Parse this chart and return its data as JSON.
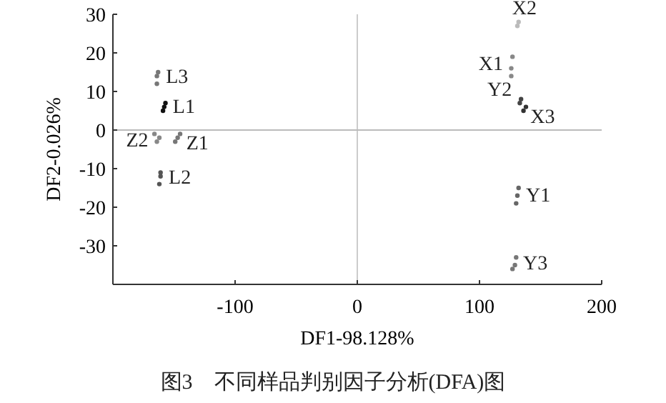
{
  "chart_data": {
    "type": "scatter",
    "xlabel": "DF1-98.128%",
    "ylabel": "DF2-0.026%",
    "annotations": [
      "图3　不同样品判别因子分析(DFA)图"
    ],
    "xlim": [
      -200,
      200
    ],
    "ylim": [
      -40,
      30
    ],
    "xticks": [
      -100,
      0,
      100,
      200
    ],
    "yticks": [
      -30,
      -20,
      -10,
      0,
      10,
      20,
      30
    ],
    "marker": "circle",
    "grid": false,
    "ref_lines": [
      {
        "axis": "x",
        "value": 0,
        "color": "#cccccc"
      },
      {
        "axis": "y",
        "value": 0,
        "color": "#bbbbbb"
      }
    ],
    "series": [
      {
        "name": "L3",
        "color": "#777777",
        "x": [
          -164,
          -164,
          -163
        ],
        "values": [
          12,
          14,
          15
        ]
      },
      {
        "name": "L1",
        "color": "#111111",
        "x": [
          -159,
          -158,
          -157
        ],
        "values": [
          5,
          6,
          7
        ]
      },
      {
        "name": "Z2",
        "color": "#888888",
        "x": [
          -166,
          -164,
          -162
        ],
        "values": [
          -1,
          -3,
          -2
        ]
      },
      {
        "name": "Z1",
        "color": "#777777",
        "x": [
          -149,
          -147,
          -145
        ],
        "values": [
          -3,
          -2,
          -1
        ]
      },
      {
        "name": "L2",
        "color": "#555555",
        "x": [
          -162,
          -161,
          -161
        ],
        "values": [
          -14,
          -12,
          -11
        ]
      },
      {
        "name": "X2",
        "color": "#bbbbbb",
        "x": [
          131,
          132
        ],
        "values": [
          27,
          28
        ]
      },
      {
        "name": "X1",
        "color": "#888888",
        "x": [
          126,
          126,
          127
        ],
        "values": [
          14,
          16,
          19
        ]
      },
      {
        "name": "Y2",
        "color": "#444444",
        "x": [
          133,
          134
        ],
        "values": [
          7,
          8
        ]
      },
      {
        "name": "X3",
        "color": "#333333",
        "x": [
          136,
          138
        ],
        "values": [
          5,
          6
        ]
      },
      {
        "name": "Y1",
        "color": "#666666",
        "x": [
          130,
          131,
          132
        ],
        "values": [
          -19,
          -17,
          -15
        ]
      },
      {
        "name": "Y3",
        "color": "#777777",
        "x": [
          127,
          129,
          130
        ],
        "values": [
          -36,
          -35,
          -33
        ]
      }
    ]
  }
}
